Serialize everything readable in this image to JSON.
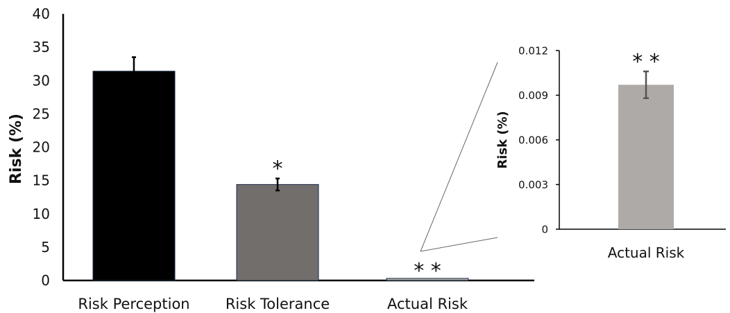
{
  "chart_data": [
    {
      "type": "bar",
      "ylabel": "Risk (%)",
      "ylim": [
        0,
        40
      ],
      "yticks": [
        "0",
        "5",
        "10",
        "15",
        "20",
        "25",
        "30",
        "35",
        "40"
      ],
      "grid": false,
      "categories": [
        "Risk Perception",
        "Risk Tolerance",
        "Actual Risk"
      ],
      "values": [
        31.4,
        14.4,
        0.0097
      ],
      "errors": [
        2.1,
        0.9,
        0.0009
      ],
      "bar_colors": [
        "#000000",
        "#726e6c",
        "#aeaaa7"
      ],
      "annotations": [
        "",
        "*",
        "* *"
      ]
    },
    {
      "type": "bar",
      "ylabel": "Risk (%)",
      "ylim": [
        0,
        0.012
      ],
      "yticks": [
        "0",
        "0.003",
        "0.006",
        "0.009",
        "0.012"
      ],
      "grid": false,
      "categories": [
        "Actual Risk"
      ],
      "values": [
        0.0097
      ],
      "errors": [
        0.0009
      ],
      "bar_colors": [
        "#aeaaa7"
      ],
      "annotations": [
        "* *"
      ]
    }
  ]
}
